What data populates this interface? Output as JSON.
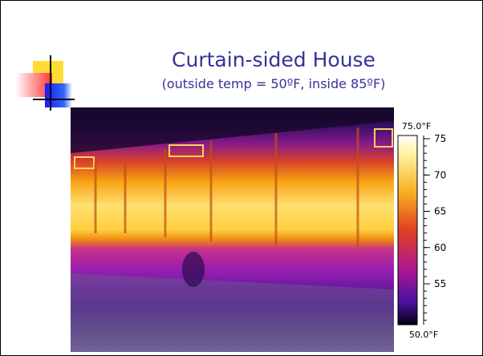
{
  "slide": {
    "title": "Curtain-sided House",
    "subtitle": "(outside temp = 50ºF, inside 85ºF)",
    "colorbar": {
      "top_label": "75.0°F",
      "bottom_label": "50.0°F",
      "ticks": [
        75,
        70,
        65,
        60,
        55
      ]
    }
  }
}
